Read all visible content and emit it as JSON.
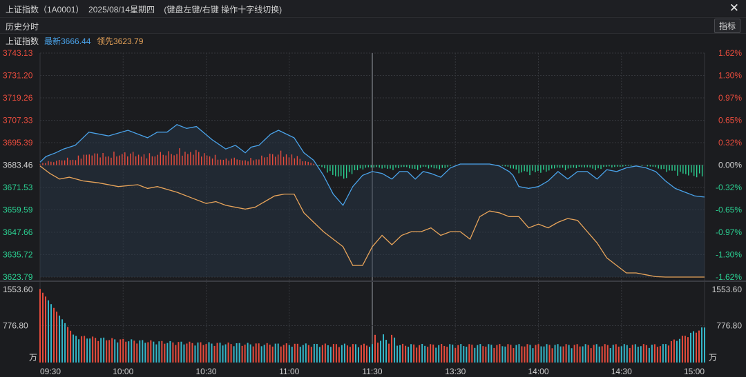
{
  "window": {
    "title": "上证指数（1A0001）  2025/08/14星期四    (键盘左键/右键 操作十字线切换)",
    "tab": "历史分时",
    "indicator_button": "指标"
  },
  "legend": {
    "name": "上证指数",
    "latest": "最新3666.44",
    "lead": "领先3623.79"
  },
  "colors": {
    "up": "#e84c3d",
    "down": "#2bd192",
    "price_line": "#4aa3ea",
    "lead_line": "#e8a45a",
    "grid": "#34363b",
    "background": "#1b1c1f"
  },
  "chart_data": [
    {
      "type": "line",
      "x_time_labels": [
        "09:30",
        "10:00",
        "10:30",
        "11:00",
        "11:30",
        "13:30",
        "14:00",
        "14:30",
        "15:00"
      ],
      "y_left_labels": [
        "3743.13",
        "3731.20",
        "3719.26",
        "3707.33",
        "3695.39",
        "3683.46",
        "3671.53",
        "3659.59",
        "3647.66",
        "3635.72",
        "3623.79"
      ],
      "y_right_labels": [
        "1.62%",
        "1.30%",
        "0.97%",
        "0.65%",
        "0.32%",
        "0.00%",
        "-0.32%",
        "-0.65%",
        "-0.97%",
        "-1.30%",
        "-1.62%"
      ],
      "ylim": [
        3623.79,
        3743.13
      ],
      "reference": 3683.46,
      "series": [
        {
          "name": "最新",
          "minutes": [
            0,
            3,
            8,
            12,
            18,
            25,
            35,
            45,
            55,
            60,
            65,
            70,
            75,
            80,
            88,
            95,
            100,
            105,
            108,
            112,
            118,
            122,
            126,
            130,
            135,
            140,
            145,
            150,
            155,
            160,
            165,
            170,
            175,
            180,
            184,
            188,
            192,
            196,
            200,
            205,
            210,
            215,
            220,
            225,
            230,
            235,
            240,
            242,
            245,
            250,
            255,
            260,
            265,
            270,
            275,
            280,
            285,
            290,
            295,
            300,
            305,
            310,
            315,
            320,
            325,
            330,
            335,
            340
          ],
          "values": [
            3685,
            3688,
            3690,
            3692,
            3694,
            3701,
            3699,
            3702,
            3698,
            3701,
            3701,
            3705,
            3703,
            3704,
            3697,
            3692,
            3694,
            3690,
            3693,
            3694,
            3700,
            3702,
            3700,
            3698,
            3690,
            3686,
            3678,
            3668,
            3662,
            3672,
            3678,
            3680,
            3679,
            3676,
            3680,
            3680,
            3676,
            3680,
            3679,
            3677,
            3682,
            3684,
            3684,
            3684,
            3684,
            3683,
            3680,
            3678,
            3672,
            3671,
            3672,
            3675,
            3680,
            3676,
            3680,
            3680,
            3676,
            3681,
            3680,
            3682,
            3683,
            3682,
            3680,
            3675,
            3671,
            3669,
            3667,
            3666.44
          ]
        },
        {
          "name": "领先",
          "minutes": [
            0,
            5,
            10,
            15,
            22,
            30,
            40,
            50,
            55,
            60,
            70,
            80,
            85,
            90,
            95,
            100,
            105,
            110,
            115,
            120,
            125,
            130,
            135,
            140,
            145,
            150,
            155,
            160,
            165,
            170,
            175,
            180,
            185,
            190,
            195,
            200,
            205,
            210,
            215,
            220,
            225,
            230,
            235,
            240,
            245,
            250,
            255,
            260,
            265,
            270,
            275,
            280,
            285,
            290,
            295,
            300,
            305,
            310,
            315,
            320,
            325,
            330,
            335,
            340
          ],
          "values": [
            3683,
            3679,
            3676,
            3677,
            3675,
            3674,
            3672,
            3673,
            3671,
            3672,
            3669,
            3665,
            3663,
            3664,
            3662,
            3661,
            3660,
            3661,
            3664,
            3667,
            3668,
            3668,
            3658,
            3653,
            3648,
            3644,
            3640,
            3630,
            3630,
            3640,
            3646,
            3641,
            3646,
            3648,
            3648,
            3650,
            3646,
            3648,
            3648,
            3644,
            3656,
            3659,
            3658,
            3656,
            3656,
            3650,
            3652,
            3650,
            3653,
            3655,
            3654,
            3648,
            3642,
            3634,
            3630,
            3626,
            3626,
            3625,
            3624,
            3623.79,
            3623.79,
            3623.79,
            3623.79,
            3623.79
          ]
        }
      ]
    },
    {
      "type": "bar",
      "y_labels": [
        "1553.60",
        "776.80"
      ],
      "y_unit": "万",
      "ylim": [
        0,
        1553.6
      ],
      "minutes_total": 240
    }
  ]
}
